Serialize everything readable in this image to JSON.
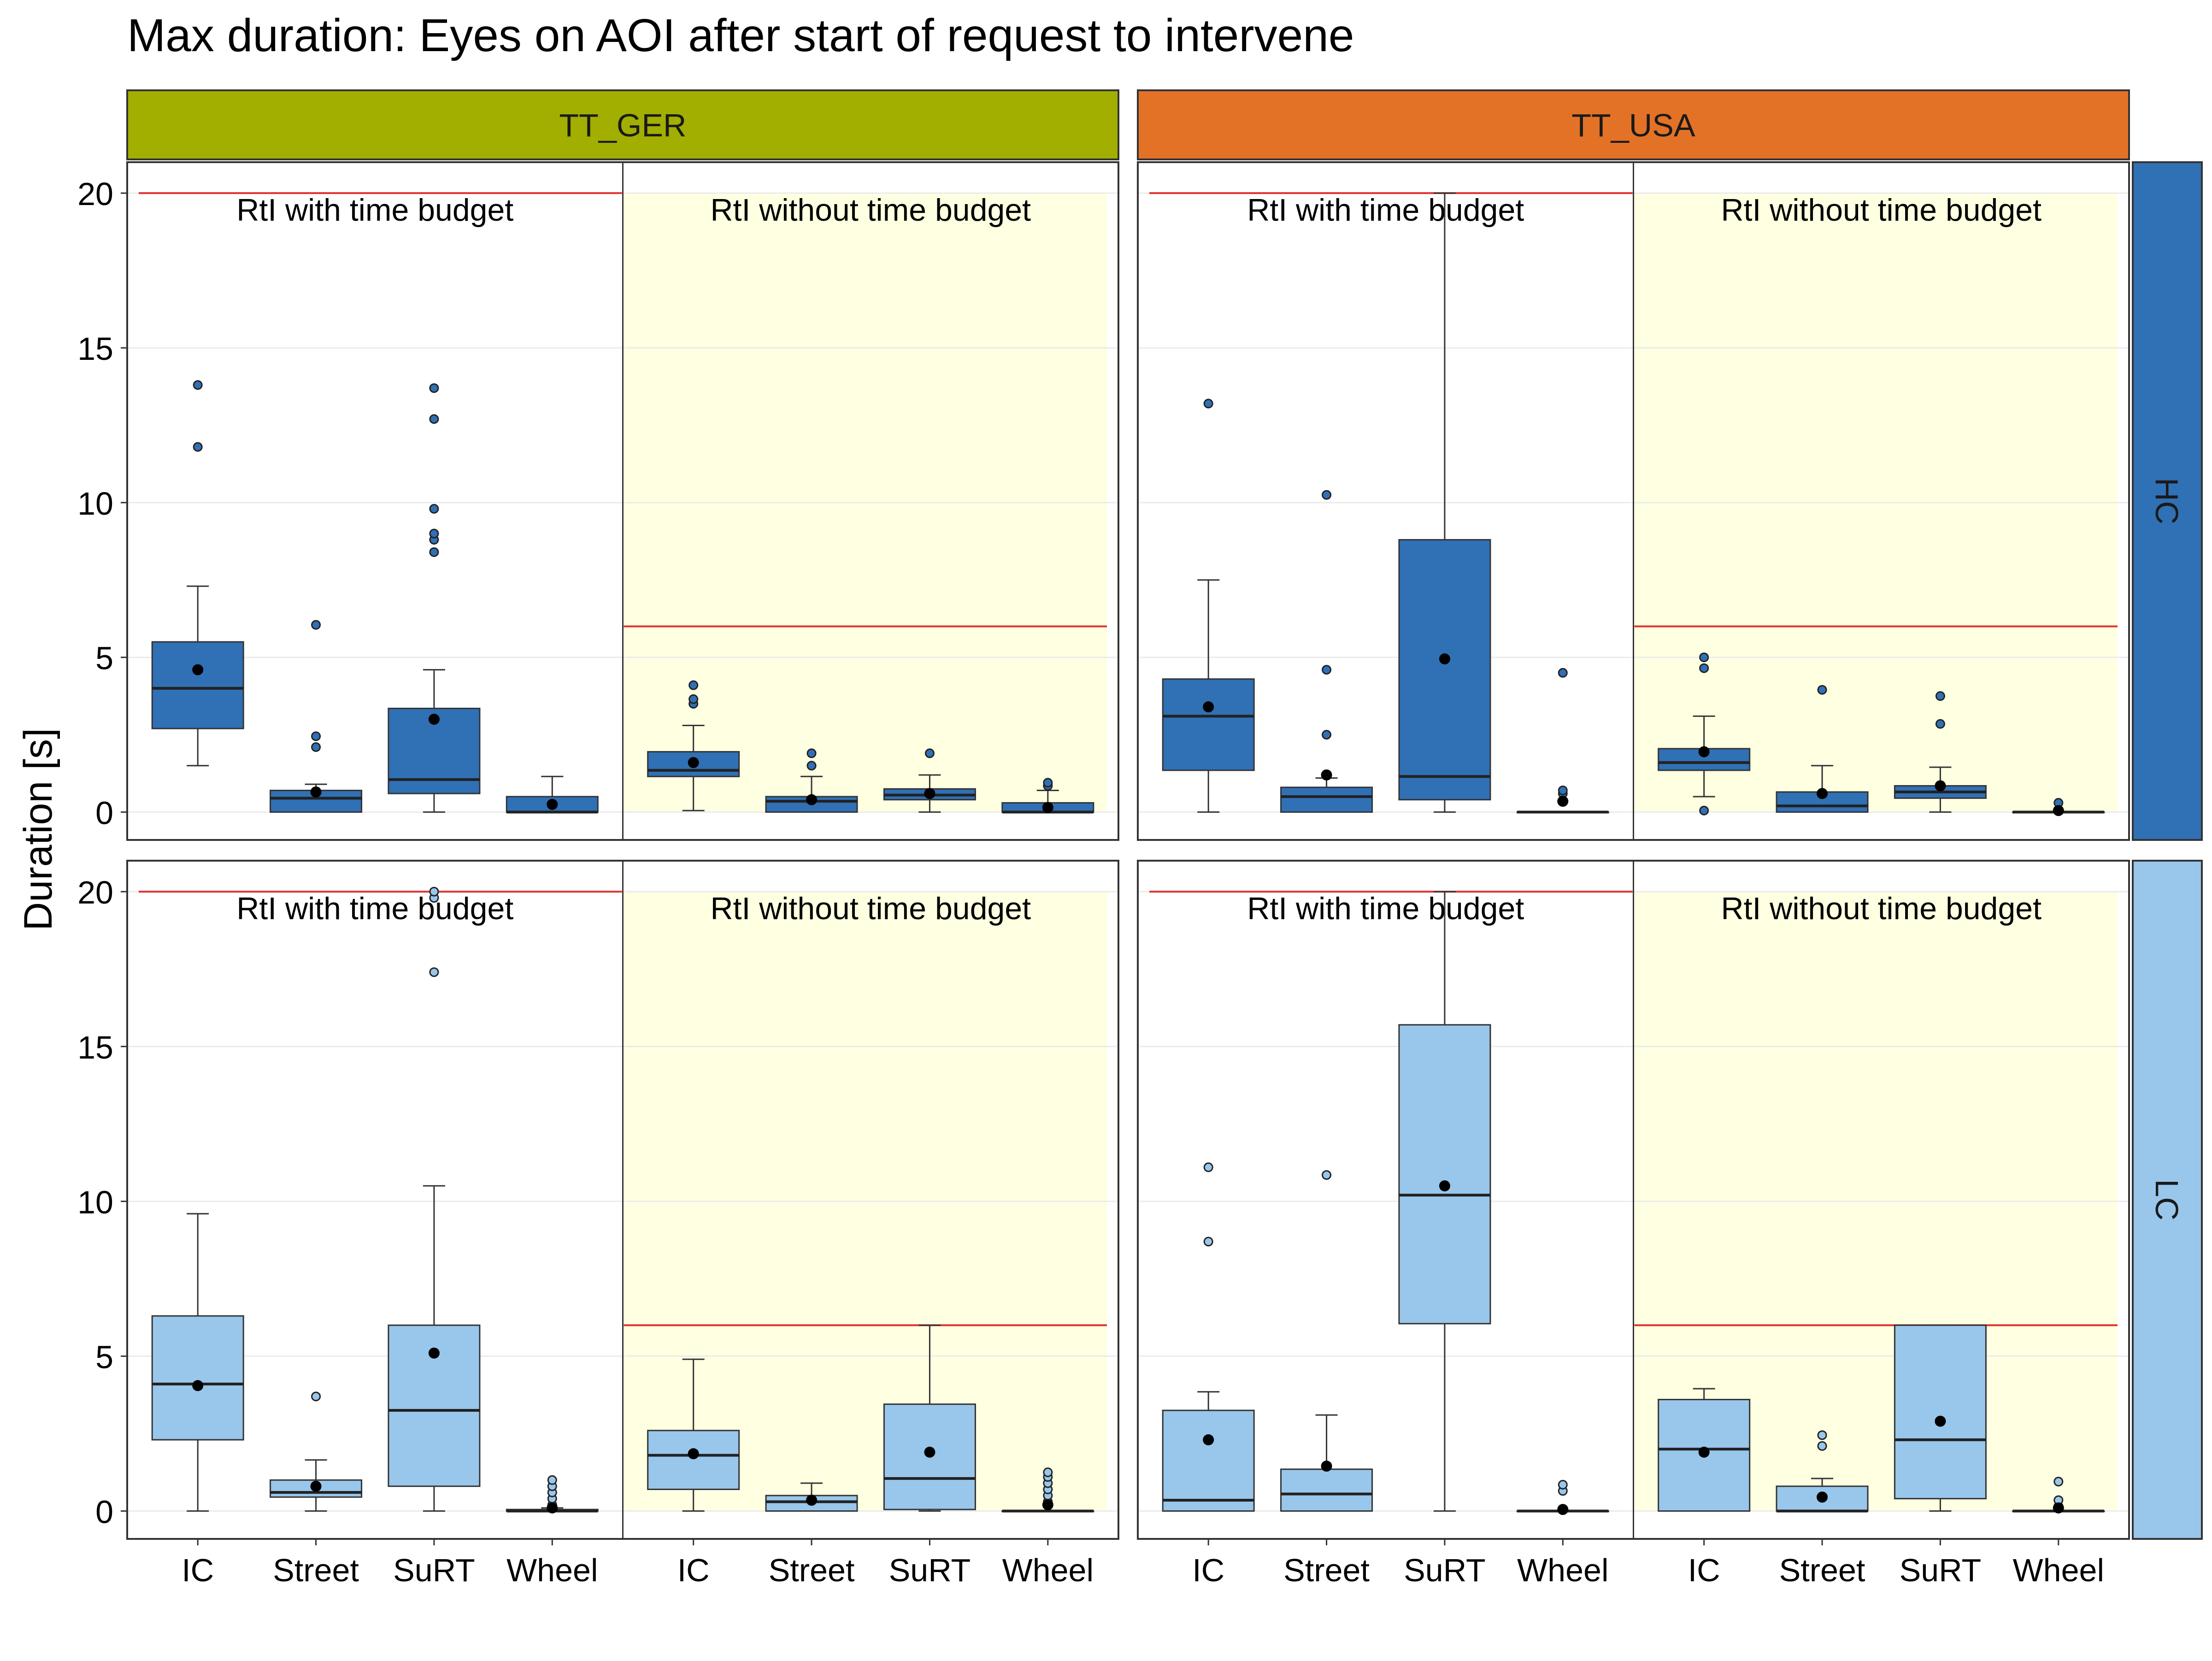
{
  "chart_data": {
    "type": "box",
    "title": "Max duration: Eyes on AOI after start of request to intervene",
    "ylabel": "Duration [s]",
    "xlabel": "",
    "ylim": [
      -0.9,
      21.0
    ],
    "yticks": [
      0,
      5,
      10,
      15,
      20
    ],
    "categories": [
      "IC",
      "Street",
      "SuRT",
      "Wheel"
    ],
    "column_facets": [
      {
        "label": "TT_GER",
        "color": "#a2ae00"
      },
      {
        "label": "TT_USA",
        "color": "#e37227"
      }
    ],
    "row_facets": [
      {
        "label": "HC",
        "fill": "#3070b5"
      },
      {
        "label": "LC",
        "fill": "#99c6eb"
      }
    ],
    "subpanels": [
      {
        "label": "RtI with time budget",
        "limit": 20,
        "background": "#ffffff"
      },
      {
        "label": "RtI without time budget",
        "limit": 6,
        "background": "#ffffe1"
      }
    ],
    "colors": {
      "limit_line": "#e0302b",
      "outline": "#333333",
      "mean": "#000000"
    },
    "mean_marker": "point",
    "panels": [
      {
        "column": "TT_GER",
        "row": "HC",
        "subpanels": [
          {
            "subpanel": "RtI with time budget",
            "boxes": [
              {
                "category": "IC",
                "lower_whisker": 1.5,
                "q1": 2.7,
                "median": 4.0,
                "q3": 5.5,
                "upper_whisker": 7.3,
                "mean": 4.6,
                "outliers": [
                  11.8,
                  13.8
                ]
              },
              {
                "category": "Street",
                "lower_whisker": 0,
                "q1": 0,
                "median": 0.45,
                "q3": 0.7,
                "upper_whisker": 0.9,
                "mean": 0.65,
                "outliers": [
                  2.1,
                  2.45,
                  6.05
                ]
              },
              {
                "category": "SuRT",
                "lower_whisker": 0,
                "q1": 0.6,
                "median": 1.05,
                "q3": 3.35,
                "upper_whisker": 4.6,
                "mean": 3.0,
                "outliers": [
                  8.4,
                  8.8,
                  9.0,
                  9.8,
                  12.7,
                  13.7
                ]
              },
              {
                "category": "Wheel",
                "lower_whisker": 0,
                "q1": 0,
                "median": 0,
                "q3": 0.5,
                "upper_whisker": 1.15,
                "mean": 0.25,
                "outliers": []
              }
            ]
          },
          {
            "subpanel": "RtI without time budget",
            "boxes": [
              {
                "category": "IC",
                "lower_whisker": 0.05,
                "q1": 1.15,
                "median": 1.35,
                "q3": 1.95,
                "upper_whisker": 2.8,
                "mean": 1.6,
                "outliers": [
                  3.5,
                  3.65,
                  4.1
                ]
              },
              {
                "category": "Street",
                "lower_whisker": 0,
                "q1": 0,
                "median": 0.35,
                "q3": 0.5,
                "upper_whisker": 1.15,
                "mean": 0.4,
                "outliers": [
                  1.5,
                  1.9
                ]
              },
              {
                "category": "SuRT",
                "lower_whisker": 0,
                "q1": 0.4,
                "median": 0.55,
                "q3": 0.75,
                "upper_whisker": 1.2,
                "mean": 0.6,
                "outliers": [
                  1.9
                ]
              },
              {
                "category": "Wheel",
                "lower_whisker": 0,
                "q1": 0,
                "median": 0,
                "q3": 0.3,
                "upper_whisker": 0.7,
                "mean": 0.15,
                "outliers": [
                  0.85,
                  0.95
                ]
              }
            ]
          }
        ]
      },
      {
        "column": "TT_USA",
        "row": "HC",
        "subpanels": [
          {
            "subpanel": "RtI with time budget",
            "boxes": [
              {
                "category": "IC",
                "lower_whisker": 0,
                "q1": 1.35,
                "median": 3.1,
                "q3": 4.3,
                "upper_whisker": 7.5,
                "mean": 3.4,
                "outliers": [
                  13.2
                ]
              },
              {
                "category": "Street",
                "lower_whisker": 0,
                "q1": 0,
                "median": 0.5,
                "q3": 0.8,
                "upper_whisker": 1.1,
                "mean": 1.2,
                "outliers": [
                  2.5,
                  4.6,
                  10.25
                ]
              },
              {
                "category": "SuRT",
                "lower_whisker": 0,
                "q1": 0.4,
                "median": 1.15,
                "q3": 8.8,
                "upper_whisker": 20.0,
                "mean": 4.95,
                "outliers": []
              },
              {
                "category": "Wheel",
                "lower_whisker": 0,
                "q1": 0,
                "median": 0,
                "q3": 0,
                "upper_whisker": 0,
                "mean": 0.35,
                "outliers": [
                  0.6,
                  0.7,
                  4.5
                ]
              }
            ]
          },
          {
            "subpanel": "RtI without time budget",
            "boxes": [
              {
                "category": "IC",
                "lower_whisker": 0.5,
                "q1": 1.35,
                "median": 1.6,
                "q3": 2.05,
                "upper_whisker": 3.1,
                "mean": 1.95,
                "outliers": [
                  0.05,
                  4.65,
                  5.0
                ]
              },
              {
                "category": "Street",
                "lower_whisker": 0,
                "q1": 0,
                "median": 0.2,
                "q3": 0.65,
                "upper_whisker": 1.5,
                "mean": 0.6,
                "outliers": [
                  3.95
                ]
              },
              {
                "category": "SuRT",
                "lower_whisker": 0,
                "q1": 0.45,
                "median": 0.65,
                "q3": 0.85,
                "upper_whisker": 1.45,
                "mean": 0.85,
                "outliers": [
                  2.85,
                  3.75
                ]
              },
              {
                "category": "Wheel",
                "lower_whisker": 0,
                "q1": 0,
                "median": 0,
                "q3": 0,
                "upper_whisker": 0,
                "mean": 0.05,
                "outliers": [
                  0.3
                ]
              }
            ]
          }
        ]
      },
      {
        "column": "TT_GER",
        "row": "LC",
        "subpanels": [
          {
            "subpanel": "RtI with time budget",
            "boxes": [
              {
                "category": "IC",
                "lower_whisker": 0,
                "q1": 2.3,
                "median": 4.1,
                "q3": 6.3,
                "upper_whisker": 9.6,
                "mean": 4.05,
                "outliers": []
              },
              {
                "category": "Street",
                "lower_whisker": 0,
                "q1": 0.45,
                "median": 0.6,
                "q3": 1.0,
                "upper_whisker": 1.65,
                "mean": 0.8,
                "outliers": [
                  3.7
                ]
              },
              {
                "category": "SuRT",
                "lower_whisker": 0,
                "q1": 0.8,
                "median": 3.25,
                "q3": 6.0,
                "upper_whisker": 10.5,
                "mean": 5.1,
                "outliers": [
                  17.4,
                  19.8,
                  20.0
                ]
              },
              {
                "category": "Wheel",
                "lower_whisker": 0,
                "q1": 0,
                "median": 0,
                "q3": 0.05,
                "upper_whisker": 0.1,
                "mean": 0.1,
                "outliers": [
                  0.2,
                  0.4,
                  0.6,
                  0.8,
                  1.0
                ]
              }
            ]
          },
          {
            "subpanel": "RtI without time budget",
            "boxes": [
              {
                "category": "IC",
                "lower_whisker": 0,
                "q1": 0.7,
                "median": 1.8,
                "q3": 2.6,
                "upper_whisker": 4.9,
                "mean": 1.85,
                "outliers": []
              },
              {
                "category": "Street",
                "lower_whisker": 0,
                "q1": 0,
                "median": 0.3,
                "q3": 0.5,
                "upper_whisker": 0.9,
                "mean": 0.35,
                "outliers": []
              },
              {
                "category": "SuRT",
                "lower_whisker": 0,
                "q1": 0.05,
                "median": 1.05,
                "q3": 3.45,
                "upper_whisker": 6.0,
                "mean": 1.9,
                "outliers": []
              },
              {
                "category": "Wheel",
                "lower_whisker": 0,
                "q1": 0,
                "median": 0,
                "q3": 0,
                "upper_whisker": 0,
                "mean": 0.2,
                "outliers": [
                  0.3,
                  0.5,
                  0.7,
                  0.9,
                  1.1,
                  1.25
                ]
              }
            ]
          }
        ]
      },
      {
        "column": "TT_USA",
        "row": "LC",
        "subpanels": [
          {
            "subpanel": "RtI with time budget",
            "boxes": [
              {
                "category": "IC",
                "lower_whisker": 0,
                "q1": 0,
                "median": 0.35,
                "q3": 3.25,
                "upper_whisker": 3.85,
                "mean": 2.3,
                "outliers": [
                  8.7,
                  11.1
                ]
              },
              {
                "category": "Street",
                "lower_whisker": 0,
                "q1": 0,
                "median": 0.55,
                "q3": 1.35,
                "upper_whisker": 3.1,
                "mean": 1.45,
                "outliers": [
                  10.85
                ]
              },
              {
                "category": "SuRT",
                "lower_whisker": 0,
                "q1": 6.05,
                "median": 10.2,
                "q3": 15.7,
                "upper_whisker": 20.0,
                "mean": 10.5,
                "outliers": []
              },
              {
                "category": "Wheel",
                "lower_whisker": 0,
                "q1": 0,
                "median": 0,
                "q3": 0,
                "upper_whisker": 0,
                "mean": 0.05,
                "outliers": [
                  0.65,
                  0.85
                ]
              }
            ]
          },
          {
            "subpanel": "RtI without time budget",
            "boxes": [
              {
                "category": "IC",
                "lower_whisker": 0,
                "q1": 0,
                "median": 2.0,
                "q3": 3.6,
                "upper_whisker": 3.95,
                "mean": 1.9,
                "outliers": []
              },
              {
                "category": "Street",
                "lower_whisker": 0,
                "q1": 0,
                "median": 0,
                "q3": 0.8,
                "upper_whisker": 1.05,
                "mean": 0.45,
                "outliers": [
                  2.1,
                  2.45
                ]
              },
              {
                "category": "SuRT",
                "lower_whisker": 0,
                "q1": 0.4,
                "median": 2.3,
                "q3": 6.0,
                "upper_whisker": 6.0,
                "mean": 2.9,
                "outliers": []
              },
              {
                "category": "Wheel",
                "lower_whisker": 0,
                "q1": 0,
                "median": 0,
                "q3": 0,
                "upper_whisker": 0,
                "mean": 0.1,
                "outliers": [
                  0.15,
                  0.35,
                  0.95
                ]
              }
            ]
          }
        ]
      }
    ]
  }
}
